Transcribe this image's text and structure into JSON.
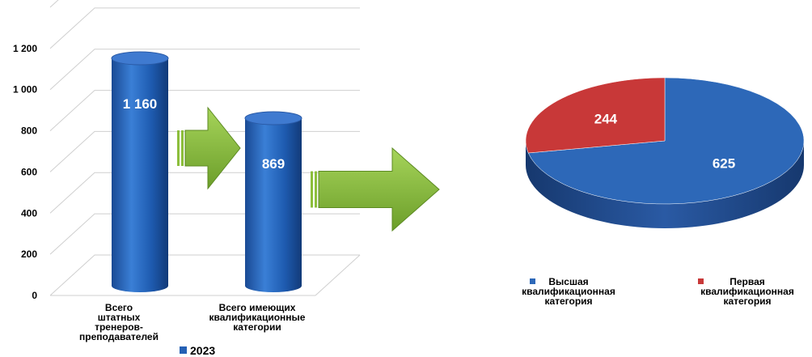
{
  "chart_data": [
    {
      "type": "bar",
      "categories": [
        [
          "Всего",
          "штатных",
          "тренеров-",
          "преподавателей"
        ],
        [
          "Всего имеющих",
          "квалификационные",
          "категории"
        ]
      ],
      "series": [
        {
          "name": "2023",
          "values": [
            1160,
            869
          ],
          "data_labels": [
            "1 160",
            "869"
          ],
          "color": "#2460b4"
        }
      ],
      "yticks": [
        "0",
        "200",
        "400",
        "600",
        "800",
        "1 000",
        "1 200"
      ],
      "ylim": [
        0,
        1400
      ],
      "grid": true,
      "legend": "bottom",
      "style": "3d-cylinder"
    },
    {
      "type": "pie",
      "categories": [
        [
          "Высшая",
          "квалификационная",
          "категория"
        ],
        [
          "Первая",
          "квалификационная",
          "категория"
        ]
      ],
      "values": [
        625,
        244
      ],
      "data_labels": [
        "625",
        "244"
      ],
      "colors": [
        "#2d68b8",
        "#c83838"
      ],
      "legend": "bottom",
      "style": "3d"
    }
  ],
  "decor": {
    "arrow_color": "#8cbe3c",
    "arrow_icon": "arrow-right-icon"
  }
}
